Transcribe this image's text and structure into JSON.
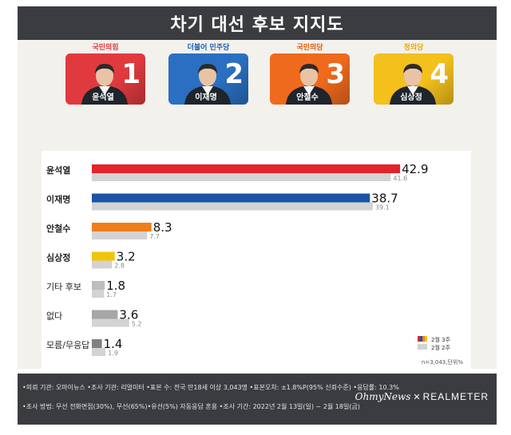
{
  "title": "차기 대선 후보 지지도",
  "candidates": [
    {
      "party": "국민의힘",
      "party_color": "#e4373b",
      "name": "윤석열",
      "number": "1",
      "card_color": "#e03a3e"
    },
    {
      "party": "더불어 민주당",
      "party_color": "#1a5fb4",
      "name": "이재명",
      "number": "2",
      "card_color": "#2a6fc1"
    },
    {
      "party": "국민의당",
      "party_color": "#ea5504",
      "name": "안철수",
      "number": "3",
      "card_color": "#ef6a1c"
    },
    {
      "party": "정의당",
      "party_color": "#f0a500",
      "name": "심상정",
      "number": "4",
      "card_color": "#f3c01c"
    }
  ],
  "chart_data": {
    "type": "bar",
    "orientation": "horizontal",
    "categories": [
      "윤석열",
      "이재명",
      "안철수",
      "심상정",
      "기타 후보",
      "없다",
      "모름/무응답"
    ],
    "series": [
      {
        "name": "2월 3주",
        "values": [
          42.9,
          38.7,
          8.3,
          3.2,
          1.8,
          3.6,
          1.4
        ]
      },
      {
        "name": "2월 2주",
        "values": [
          41.6,
          39.1,
          7.7,
          2.8,
          1.7,
          5.2,
          1.9
        ]
      }
    ],
    "value_labels_current": [
      "42.9",
      "38.7",
      "8.3",
      "3.2",
      "1.8",
      "3.6",
      "1.4"
    ],
    "value_labels_prev": [
      "41.6",
      "39.1",
      "7.7",
      "2.8",
      "1.7",
      "5.2",
      "1.9"
    ],
    "bar_colors": [
      "#e4232d",
      "#1a54a6",
      "#ef7d1b",
      "#f2c409",
      "#bdbdbd",
      "#a6a6a6",
      "#808080"
    ],
    "prev_color": "#d3d3d3",
    "bold_categories": [
      true,
      true,
      true,
      true,
      false,
      false,
      false
    ],
    "xlim": [
      0,
      50
    ],
    "legend_position": "bottom-right",
    "n_label": "n=3,043,단위%"
  },
  "footer": {
    "line1": "•의뢰 기관: 오마이뉴스 •조사 기관: 리얼미터 •표본 수: 전국 만18세 이상 3,043명 •표본오차: ±1.8%P(95% 신뢰수준) •응답률: 10.3%",
    "line2": "•조사 방법: 무선 전화면접(30%), 무선(65%)•유선(5%) 자동응답 혼용  •조사 기간: 2022년 2월 13일(일) ~ 2월 18일(금)",
    "brand_left": "OhmyNews",
    "brand_x": "✕",
    "brand_right": "REALMETER"
  }
}
